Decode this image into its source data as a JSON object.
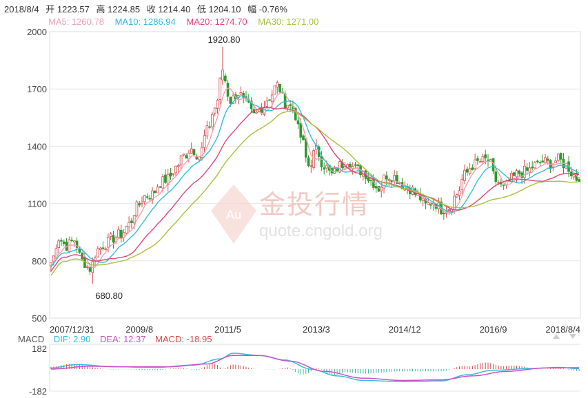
{
  "header": {
    "date": "2018/8/4",
    "open": "开 1223.57",
    "high": "高 1224.85",
    "close": "收 1214.40",
    "low": "低 1204.10",
    "change": "幅 -0.76%"
  },
  "ma_legend": {
    "ma5": "MA5: 1260.78",
    "ma10": "MA10: 1286.94",
    "ma20": "MA20: 1274.70",
    "ma30": "MA30: 1271.00"
  },
  "macd_legend": {
    "label": "MACD",
    "dif": "DIF: 2.90",
    "dea": "DEA: 12.37",
    "macd": "MACD: -18.95"
  },
  "watermark": {
    "brand": "金投行情",
    "url": "quote.cngold.org",
    "logo_text": "Au"
  },
  "colors": {
    "up": "#d94a4a",
    "down": "#2e9a2e",
    "ma5": "#f0a0b4",
    "ma10": "#33bbe0",
    "ma20": "#e0457b",
    "ma30": "#a6c23a",
    "dif": "#33bbe0",
    "dea": "#c94fc9",
    "grid": "#e6e6e6"
  },
  "chart_data": [
    {
      "type": "candlestick",
      "yticks": [
        500,
        800,
        1100,
        1400,
        1700,
        2000
      ],
      "ylim": [
        500,
        2000
      ],
      "x_tick_labels": [
        "2007/12/31",
        "2009/8",
        "2011/5",
        "2013/3",
        "2014/12",
        "2016/9",
        "2018/8/4"
      ],
      "annotations": [
        {
          "text": "1920.80",
          "value": 1920.8
        },
        {
          "text": "680.80",
          "value": 680.8
        }
      ],
      "anchors_close": [
        [
          0,
          790
        ],
        [
          3,
          920
        ],
        [
          6,
          880
        ],
        [
          9,
          910
        ],
        [
          12,
          800
        ],
        [
          15,
          760
        ],
        [
          18,
          860
        ],
        [
          21,
          890
        ],
        [
          24,
          920
        ],
        [
          27,
          940
        ],
        [
          30,
          990
        ],
        [
          33,
          1080
        ],
        [
          36,
          1140
        ],
        [
          39,
          1150
        ],
        [
          42,
          1210
        ],
        [
          45,
          1230
        ],
        [
          48,
          1290
        ],
        [
          51,
          1350
        ],
        [
          54,
          1390
        ],
        [
          57,
          1350
        ],
        [
          60,
          1480
        ],
        [
          63,
          1600
        ],
        [
          66,
          1780
        ],
        [
          69,
          1640
        ],
        [
          72,
          1680
        ],
        [
          75,
          1620
        ],
        [
          78,
          1560
        ],
        [
          81,
          1600
        ],
        [
          84,
          1660
        ],
        [
          87,
          1720
        ],
        [
          90,
          1630
        ],
        [
          93,
          1600
        ],
        [
          96,
          1450
        ],
        [
          99,
          1300
        ],
        [
          102,
          1380
        ],
        [
          105,
          1300
        ],
        [
          108,
          1250
        ],
        [
          111,
          1300
        ],
        [
          114,
          1330
        ],
        [
          117,
          1280
        ],
        [
          120,
          1270
        ],
        [
          123,
          1220
        ],
        [
          126,
          1180
        ],
        [
          129,
          1250
        ],
        [
          132,
          1240
        ],
        [
          135,
          1200
        ],
        [
          138,
          1180
        ],
        [
          141,
          1140
        ],
        [
          144,
          1090
        ],
        [
          147,
          1110
        ],
        [
          150,
          1070
        ],
        [
          153,
          1080
        ],
        [
          156,
          1150
        ],
        [
          159,
          1250
        ],
        [
          162,
          1300
        ],
        [
          165,
          1320
        ],
        [
          168,
          1330
        ],
        [
          171,
          1220
        ],
        [
          174,
          1180
        ],
        [
          177,
          1230
        ],
        [
          180,
          1260
        ],
        [
          183,
          1270
        ],
        [
          186,
          1300
        ],
        [
          189,
          1320
        ],
        [
          192,
          1310
        ],
        [
          195,
          1330
        ],
        [
          198,
          1300
        ],
        [
          201,
          1250
        ],
        [
          203,
          1214.4
        ]
      ]
    },
    {
      "type": "bar+line",
      "name": "MACD",
      "yticks": [
        182,
        -182
      ],
      "ylim": [
        -182,
        182
      ],
      "dif_anchors": [
        [
          0,
          10
        ],
        [
          10,
          40
        ],
        [
          25,
          20
        ],
        [
          40,
          15
        ],
        [
          55,
          35
        ],
        [
          65,
          90
        ],
        [
          70,
          140
        ],
        [
          80,
          120
        ],
        [
          90,
          80
        ],
        [
          100,
          0
        ],
        [
          110,
          -60
        ],
        [
          120,
          -100
        ],
        [
          135,
          -110
        ],
        [
          150,
          -105
        ],
        [
          160,
          -50
        ],
        [
          170,
          -10
        ],
        [
          185,
          5
        ],
        [
          195,
          15
        ],
        [
          203,
          2.9
        ]
      ],
      "dea_anchors": [
        [
          0,
          0
        ],
        [
          15,
          25
        ],
        [
          30,
          20
        ],
        [
          45,
          20
        ],
        [
          60,
          45
        ],
        [
          70,
          120
        ],
        [
          80,
          120
        ],
        [
          92,
          70
        ],
        [
          105,
          -20
        ],
        [
          120,
          -80
        ],
        [
          135,
          -100
        ],
        [
          150,
          -95
        ],
        [
          162,
          -60
        ],
        [
          175,
          -20
        ],
        [
          190,
          10
        ],
        [
          203,
          12.37
        ]
      ]
    }
  ]
}
